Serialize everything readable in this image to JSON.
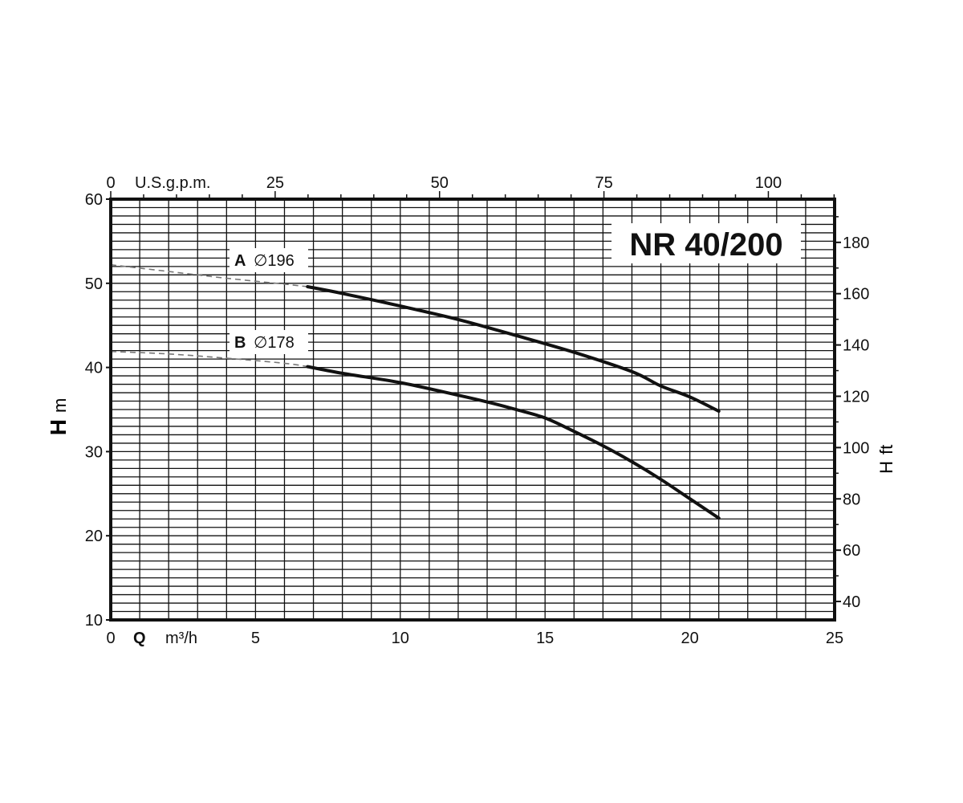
{
  "chart_data": {
    "type": "line",
    "title": "NR 40/200",
    "x_axis": {
      "label_symbol": "Q",
      "unit": "m³/h",
      "range": [
        0,
        25
      ],
      "ticks": [
        0,
        5,
        10,
        15,
        20,
        25
      ]
    },
    "x2_axis": {
      "unit": "U.S.g.p.m.",
      "ticks": [
        0,
        25,
        50,
        75,
        100
      ],
      "m3h_per_unit": 0.22712
    },
    "y_axis": {
      "label_symbol": "H",
      "unit": "m",
      "range": [
        10,
        60
      ],
      "ticks": [
        10,
        20,
        30,
        40,
        50,
        60
      ]
    },
    "y2_axis": {
      "label_symbol": "H",
      "unit": "ft",
      "ticks": [
        40,
        60,
        80,
        100,
        120,
        140,
        160,
        180
      ],
      "m_per_unit": 0.3048
    },
    "grid": true,
    "series": [
      {
        "name": "A",
        "diameter": "∅196",
        "extrapolated": {
          "x": [
            0,
            2,
            4,
            6,
            6.8
          ],
          "y": [
            52.2,
            51.4,
            50.6,
            49.9,
            49.6
          ]
        },
        "values": {
          "x": [
            6.8,
            8,
            10,
            12,
            14,
            16,
            18,
            19,
            20,
            21
          ],
          "y": [
            49.6,
            48.8,
            47.3,
            45.7,
            43.8,
            41.8,
            39.5,
            37.8,
            36.5,
            34.8
          ]
        }
      },
      {
        "name": "B",
        "diameter": "∅178",
        "extrapolated": {
          "x": [
            0,
            2,
            4,
            6,
            6.8
          ],
          "y": [
            41.9,
            41.6,
            41.1,
            40.5,
            40.1
          ]
        },
        "values": {
          "x": [
            6.8,
            8,
            10,
            12,
            13,
            14,
            15,
            16,
            17,
            18,
            19,
            20,
            21
          ],
          "y": [
            40.1,
            39.3,
            38.2,
            36.7,
            35.9,
            35.0,
            34.0,
            32.4,
            30.7,
            28.8,
            26.7,
            24.4,
            22.1
          ]
        }
      }
    ]
  }
}
